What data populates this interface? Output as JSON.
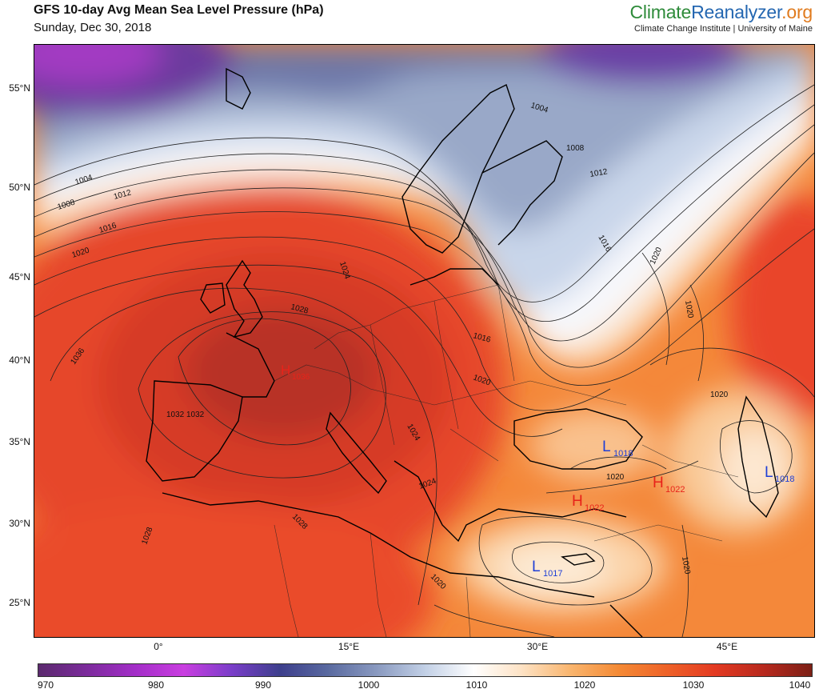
{
  "header": {
    "title": "GFS 10-day Avg Mean Sea Level Pressure (hPa)",
    "date": "Sunday, Dec 30, 2018",
    "brand_a": "Climate",
    "brand_b": "Reanalyzer",
    "brand_c": ".org",
    "institution": "Climate Change Institute | University of Maine"
  },
  "map": {
    "lat_labels": [
      "55°N",
      "50°N",
      "45°N",
      "40°N",
      "35°N",
      "30°N",
      "25°N"
    ],
    "lon_labels": [
      "0°",
      "15°E",
      "30°E",
      "45°E"
    ],
    "pressure_centers": [
      {
        "type": "H",
        "value": "1036",
        "color": "#e8231a"
      },
      {
        "type": "L",
        "value": "1018",
        "color": "#1f3fd6"
      },
      {
        "type": "H",
        "value": "1022",
        "color": "#e8231a"
      },
      {
        "type": "L",
        "value": "1018",
        "color": "#1f3fd6"
      },
      {
        "type": "H",
        "value": "1022",
        "color": "#e8231a"
      },
      {
        "type": "L",
        "value": "1017",
        "color": "#1f3fd6"
      }
    ],
    "isobar_labels": [
      "1004",
      "1008",
      "1012",
      "1016",
      "1020",
      "1024",
      "1028",
      "1032",
      "1036",
      "1028",
      "1032",
      "1004",
      "1008",
      "1012",
      "1016",
      "1020",
      "1016",
      "1020",
      "1020",
      "1024",
      "1020",
      "1024",
      "1028",
      "1020",
      "1020",
      "1020"
    ]
  },
  "colorbar": {
    "ticks": [
      "970",
      "980",
      "990",
      "1000",
      "1010",
      "1020",
      "1030",
      "1040"
    ],
    "colors": [
      "#5b2a6e",
      "#7c2b9c",
      "#a32ec8",
      "#c93ee0",
      "#7a3ec9",
      "#3d3f8c",
      "#5a6aa0",
      "#8a9ac0",
      "#c2d0e6",
      "#ffffff",
      "#fde2c4",
      "#f9b56e",
      "#f48a35",
      "#ee6228",
      "#e33a22",
      "#b7291e",
      "#7c2016"
    ]
  }
}
